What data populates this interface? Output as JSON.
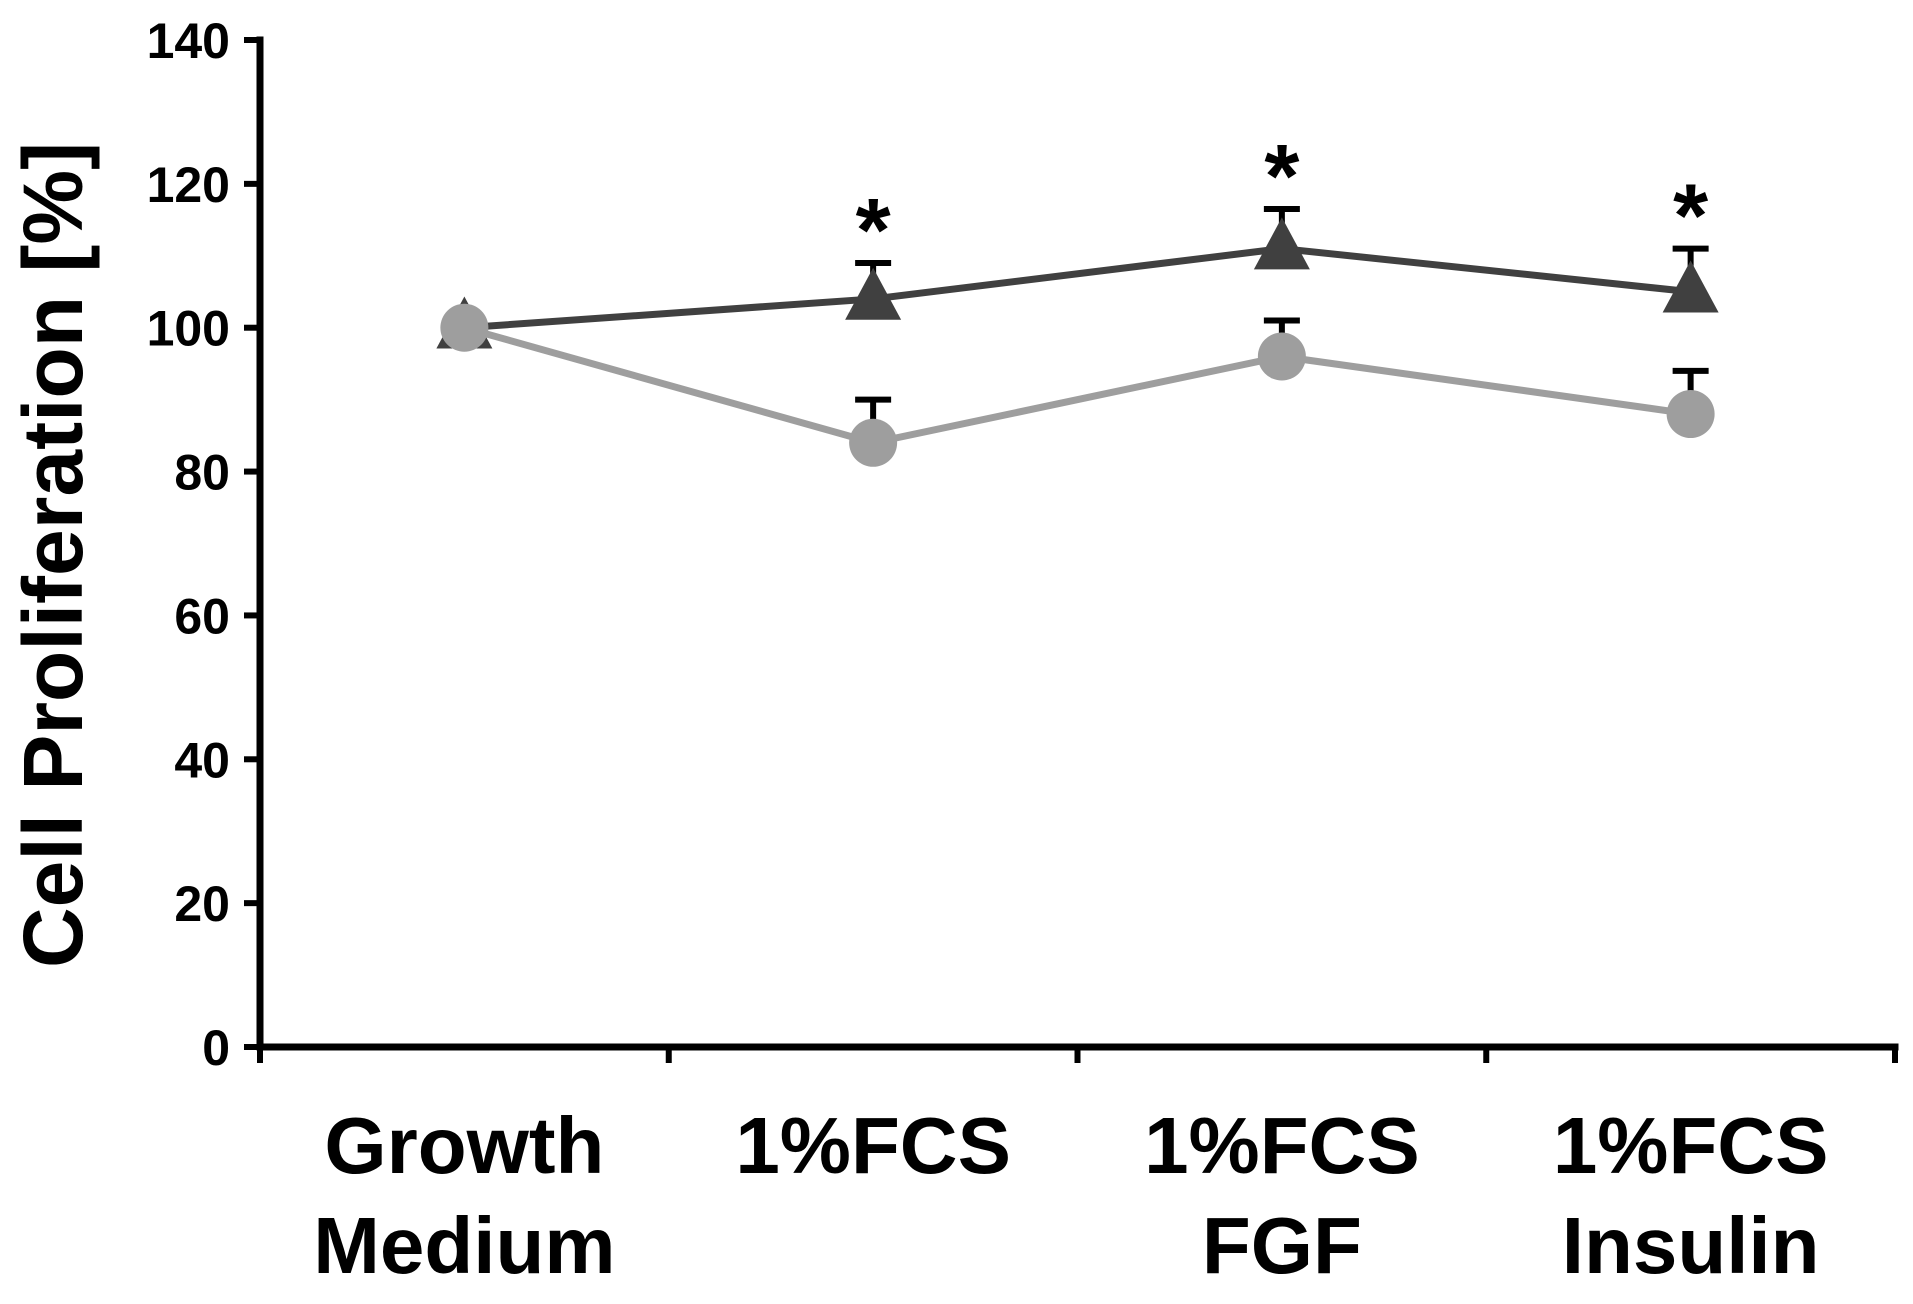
{
  "chart_data": {
    "type": "line",
    "categories": [
      [
        "Growth",
        "Medium"
      ],
      [
        "1%FCS"
      ],
      [
        "1%FCS",
        "FGF"
      ],
      [
        "1%FCS",
        "Insulin"
      ]
    ],
    "ylabel": "Cell Proliferation [%]",
    "xlabel": "",
    "ylim": [
      0,
      140
    ],
    "yticks": [
      0,
      20,
      40,
      60,
      80,
      100,
      120,
      140
    ],
    "series": [
      {
        "marker": "triangle",
        "color": "#404040",
        "values": [
          100,
          104,
          111,
          105
        ],
        "errors": [
          0,
          5,
          5.5,
          6
        ]
      },
      {
        "marker": "circle",
        "color": "#9e9e9e",
        "values": [
          100,
          84,
          96,
          88
        ],
        "errors": [
          0,
          6,
          5,
          6
        ]
      }
    ],
    "annotations": [
      {
        "category_index": 1,
        "text": "*"
      },
      {
        "category_index": 2,
        "text": "*"
      },
      {
        "category_index": 3,
        "text": "*"
      }
    ],
    "grid": false,
    "legend": "none"
  }
}
